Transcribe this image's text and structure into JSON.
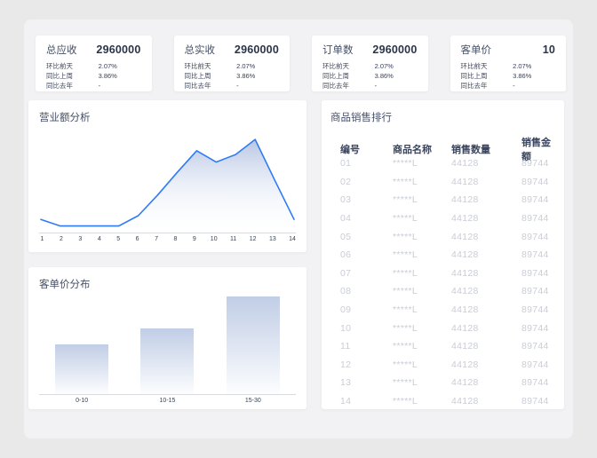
{
  "colors": {
    "page_bg": "#e9e9e9",
    "panel_bg": "#f2f2f4",
    "card_bg": "#ffffff",
    "accent_line": "#2f7bf6",
    "axis_line": "#d8dadd",
    "dark_text": "#2b3447",
    "muted_row_text": "#c9cdd7"
  },
  "kpi_cards": [
    {
      "title": "总应收",
      "value": "2960000",
      "metrics": [
        {
          "label": "环比前天",
          "value": "2.07%"
        },
        {
          "label": "同比上周",
          "value": "3.86%"
        },
        {
          "label": "同比去年",
          "value": "-"
        }
      ]
    },
    {
      "title": "总实收",
      "value": "2960000",
      "metrics": [
        {
          "label": "环比前天",
          "value": "2.07%"
        },
        {
          "label": "同比上周",
          "value": "3.86%"
        },
        {
          "label": "同比去年",
          "value": "-"
        }
      ]
    },
    {
      "title": "订单数",
      "value": "2960000",
      "metrics": [
        {
          "label": "环比前天",
          "value": "2.07%"
        },
        {
          "label": "同比上周",
          "value": "3.86%"
        },
        {
          "label": "同比去年",
          "value": "-"
        }
      ]
    },
    {
      "title": "客单价",
      "value": "10",
      "metrics": [
        {
          "label": "环比前天",
          "value": "2.07%"
        },
        {
          "label": "同比上周",
          "value": "3.86%"
        },
        {
          "label": "同比去年",
          "value": "-"
        }
      ]
    }
  ],
  "chart_data": [
    {
      "type": "area",
      "title": "营业额分析",
      "x": [
        1,
        2,
        3,
        4,
        5,
        6,
        7,
        8,
        9,
        10,
        11,
        12,
        13,
        14
      ],
      "series": [
        {
          "name": "营业额",
          "values": [
            13,
            6,
            6,
            6,
            6,
            17,
            39,
            63,
            86,
            74,
            82,
            98,
            55,
            13
          ]
        }
      ],
      "ylim": [
        0,
        100
      ],
      "grid": false,
      "legend_position": "none",
      "line_color": "#2f7bf6"
    },
    {
      "type": "bar",
      "title": "客单价分布",
      "categories": [
        "0-10",
        "10-15",
        "15-30"
      ],
      "values": [
        51,
        67,
        100
      ],
      "ylim": [
        0,
        110
      ],
      "grid": false,
      "legend_position": "none"
    }
  ],
  "table": {
    "title": "商品销售排行",
    "columns": [
      "编号",
      "商品名称",
      "销售数量",
      "销售金额"
    ],
    "rows": [
      [
        "01",
        "*****L",
        "44128",
        "89744"
      ],
      [
        "02",
        "*****L",
        "44128",
        "89744"
      ],
      [
        "03",
        "*****L",
        "44128",
        "89744"
      ],
      [
        "04",
        "*****L",
        "44128",
        "89744"
      ],
      [
        "05",
        "*****L",
        "44128",
        "89744"
      ],
      [
        "06",
        "*****L",
        "44128",
        "89744"
      ],
      [
        "07",
        "*****L",
        "44128",
        "89744"
      ],
      [
        "08",
        "*****L",
        "44128",
        "89744"
      ],
      [
        "09",
        "*****L",
        "44128",
        "89744"
      ],
      [
        "10",
        "*****L",
        "44128",
        "89744"
      ],
      [
        "11",
        "*****L",
        "44128",
        "89744"
      ],
      [
        "12",
        "*****L",
        "44128",
        "89744"
      ],
      [
        "13",
        "*****L",
        "44128",
        "89744"
      ],
      [
        "14",
        "*****L",
        "44128",
        "89744"
      ]
    ]
  }
}
